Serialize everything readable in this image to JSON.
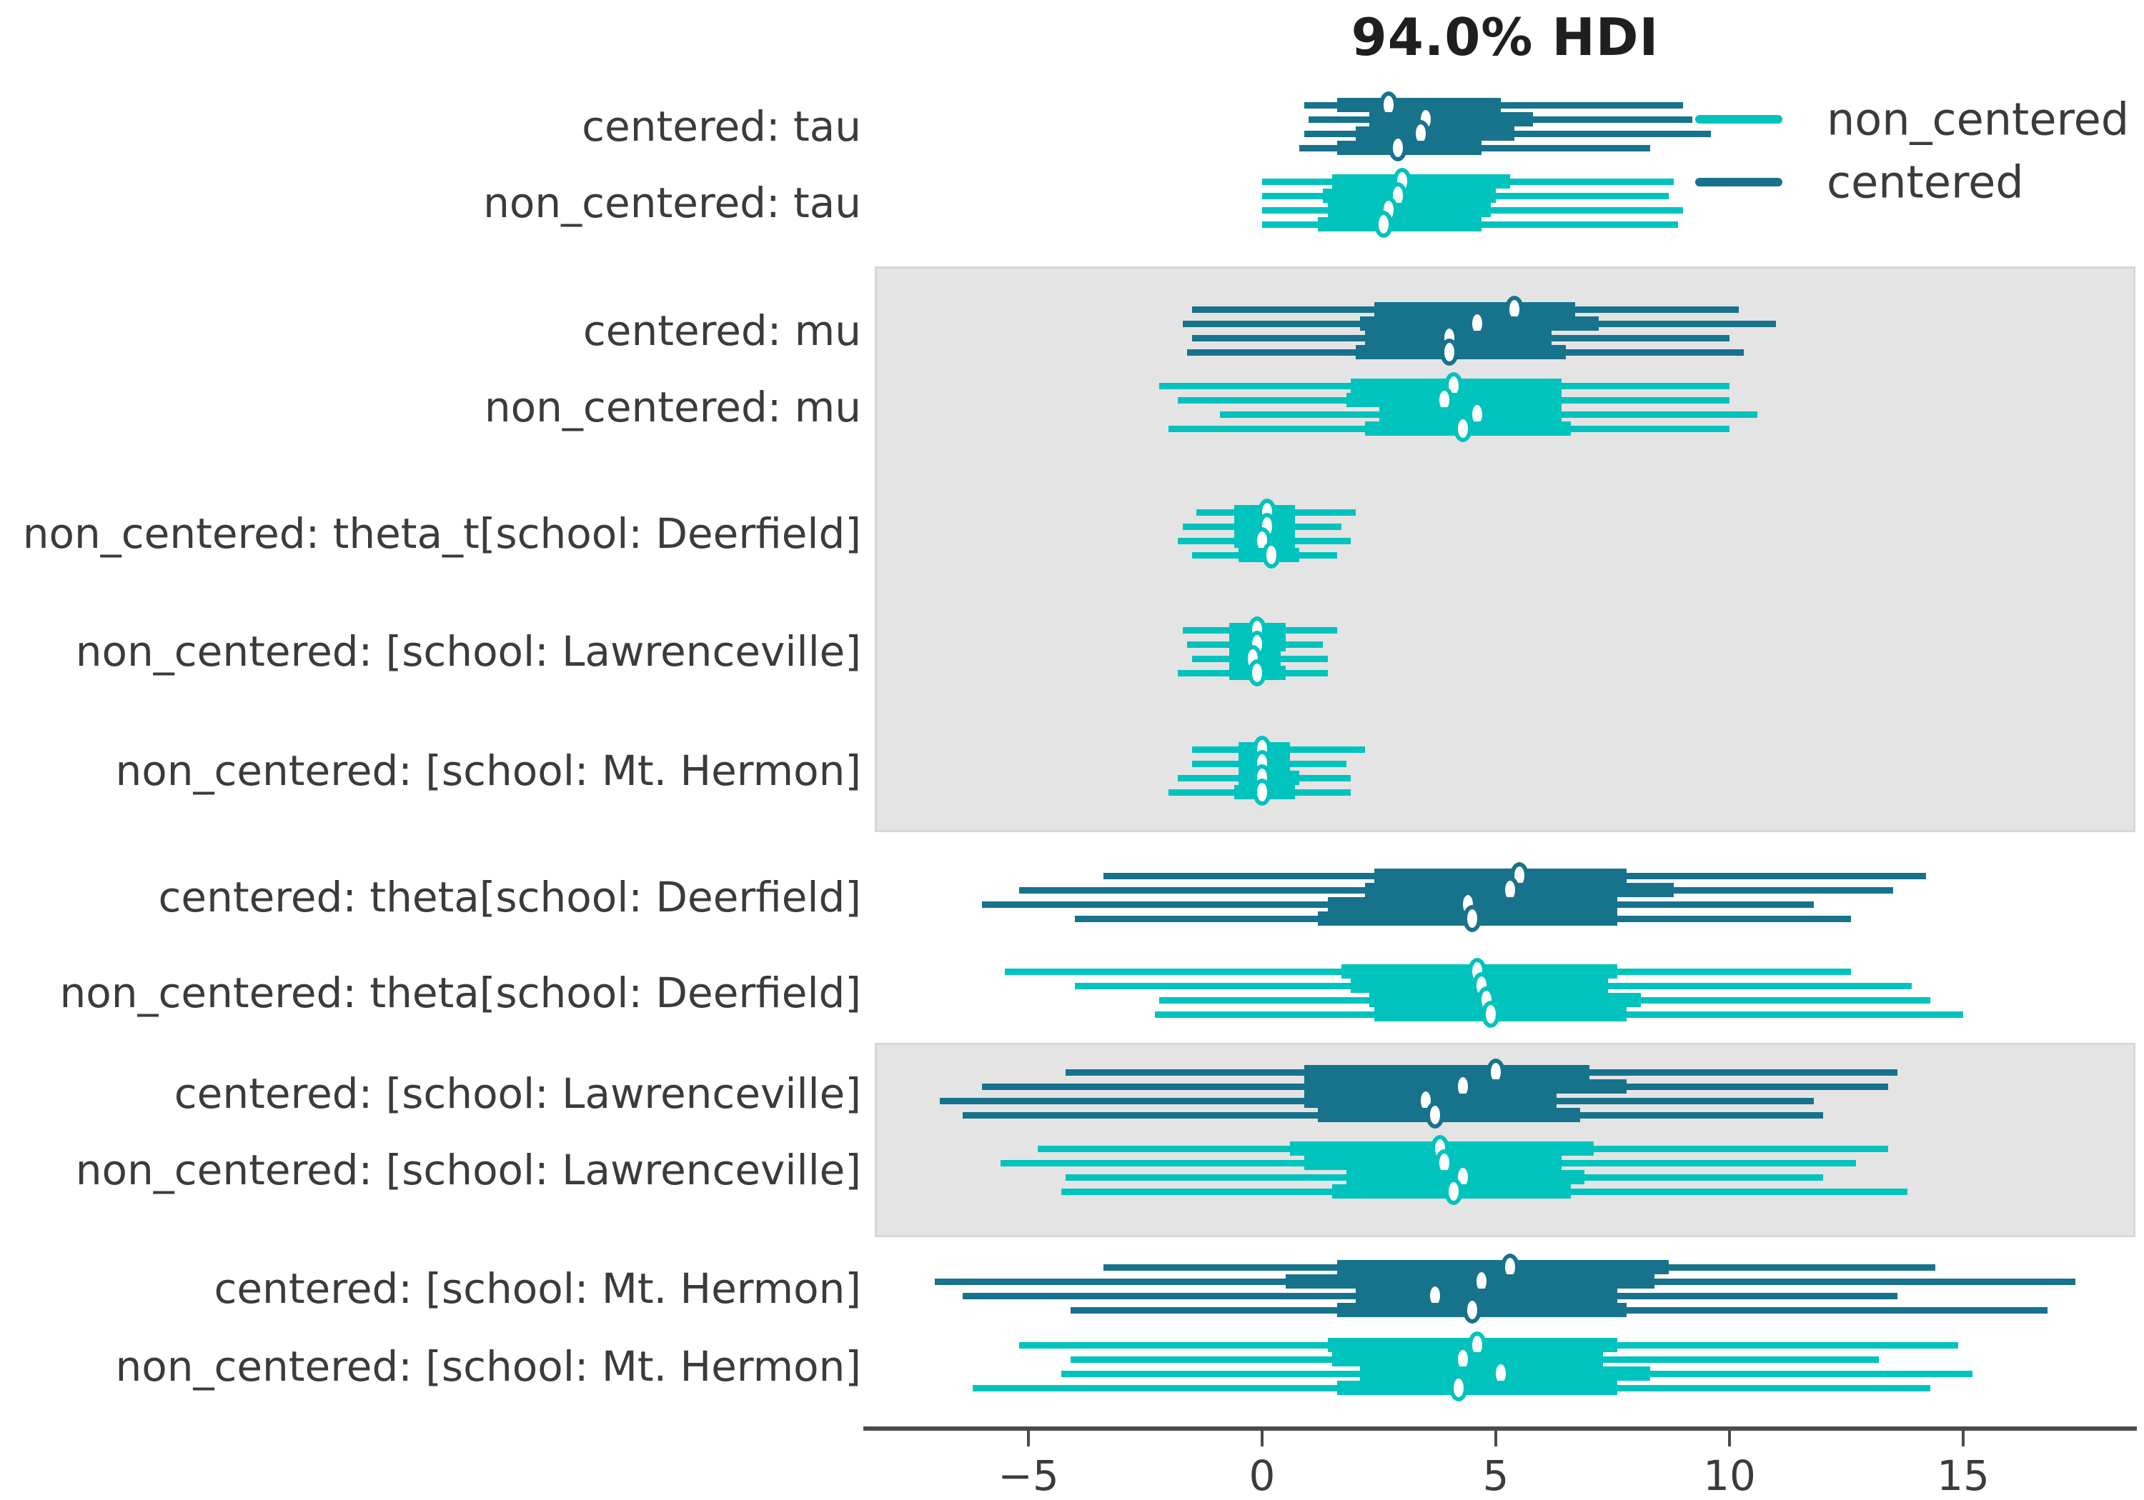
{
  "title": "94.0% HDI",
  "legend": {
    "items": [
      {
        "label": "non_centered",
        "color": "#00c3be"
      },
      {
        "label": "centered",
        "color": "#17728c"
      }
    ]
  },
  "models": {
    "non_centered": "#00c3be",
    "centered": "#17728c"
  },
  "status_colors": {
    "band_fill": "#e4e4e4",
    "band_border": "#d6d6d6",
    "axis": "#4b4b4b",
    "text": "#3b3b3b"
  },
  "chart_data": {
    "type": "forest",
    "title": "94.0% HDI",
    "hdi_probability": "94.0%",
    "interval_style": "thin = 94% HDI, thick = interquartile range, circle = median, one line per chain",
    "x_ticks": [
      -5,
      0,
      5,
      10,
      15
    ],
    "x_tick_labels": [
      "−5",
      "0",
      "5",
      "10",
      "15"
    ],
    "xlim": [
      -8.3,
      18.7
    ],
    "grid": false,
    "legend_position": "upper right outside",
    "rows": [
      {
        "label": "centered: tau",
        "model": "centered",
        "shaded": false,
        "chains": [
          {
            "hdi_lo": 0.9,
            "q1": 1.6,
            "median": 2.7,
            "q3": 5.1,
            "hdi_hi": 9.0
          },
          {
            "hdi_lo": 1.0,
            "q1": 2.3,
            "median": 3.5,
            "q3": 5.8,
            "hdi_hi": 9.2
          },
          {
            "hdi_lo": 0.9,
            "q1": 2.0,
            "median": 3.4,
            "q3": 5.4,
            "hdi_hi": 9.6
          },
          {
            "hdi_lo": 0.8,
            "q1": 1.6,
            "median": 2.9,
            "q3": 4.7,
            "hdi_hi": 8.3
          }
        ]
      },
      {
        "label": "non_centered: tau",
        "model": "non_centered",
        "shaded": false,
        "chains": [
          {
            "hdi_lo": 0.0,
            "q1": 1.5,
            "median": 3.0,
            "q3": 5.3,
            "hdi_hi": 8.8
          },
          {
            "hdi_lo": 0.0,
            "q1": 1.3,
            "median": 2.9,
            "q3": 5.0,
            "hdi_hi": 8.7
          },
          {
            "hdi_lo": 0.0,
            "q1": 1.4,
            "median": 2.7,
            "q3": 4.9,
            "hdi_hi": 9.0
          },
          {
            "hdi_lo": 0.0,
            "q1": 1.2,
            "median": 2.6,
            "q3": 4.7,
            "hdi_hi": 8.9
          }
        ]
      },
      {
        "label": "centered: mu",
        "model": "centered",
        "shaded": true,
        "chains": [
          {
            "hdi_lo": -1.5,
            "q1": 2.4,
            "median": 5.4,
            "q3": 6.7,
            "hdi_hi": 10.2
          },
          {
            "hdi_lo": -1.7,
            "q1": 2.1,
            "median": 4.6,
            "q3": 7.2,
            "hdi_hi": 11.0
          },
          {
            "hdi_lo": -1.5,
            "q1": 2.2,
            "median": 4.0,
            "q3": 6.2,
            "hdi_hi": 10.0
          },
          {
            "hdi_lo": -1.6,
            "q1": 2.0,
            "median": 4.0,
            "q3": 6.5,
            "hdi_hi": 10.3
          }
        ]
      },
      {
        "label": "non_centered: mu",
        "model": "non_centered",
        "shaded": true,
        "chains": [
          {
            "hdi_lo": -2.2,
            "q1": 1.9,
            "median": 4.1,
            "q3": 6.4,
            "hdi_hi": 10.0
          },
          {
            "hdi_lo": -1.8,
            "q1": 1.8,
            "median": 3.9,
            "q3": 6.4,
            "hdi_hi": 10.0
          },
          {
            "hdi_lo": -0.9,
            "q1": 2.5,
            "median": 4.6,
            "q3": 6.4,
            "hdi_hi": 10.6
          },
          {
            "hdi_lo": -2.0,
            "q1": 2.2,
            "median": 4.3,
            "q3": 6.6,
            "hdi_hi": 10.0
          }
        ]
      },
      {
        "label": "non_centered: theta_t[school: Deerfield]",
        "model": "non_centered",
        "shaded": true,
        "chains": [
          {
            "hdi_lo": -1.4,
            "q1": -0.6,
            "median": 0.1,
            "q3": 0.7,
            "hdi_hi": 2.0
          },
          {
            "hdi_lo": -1.7,
            "q1": -0.6,
            "median": 0.1,
            "q3": 0.7,
            "hdi_hi": 1.7
          },
          {
            "hdi_lo": -1.8,
            "q1": -0.6,
            "median": 0.0,
            "q3": 0.7,
            "hdi_hi": 1.9
          },
          {
            "hdi_lo": -1.5,
            "q1": -0.5,
            "median": 0.2,
            "q3": 0.8,
            "hdi_hi": 1.6
          }
        ]
      },
      {
        "label": "non_centered: [school: Lawrenceville]",
        "model": "non_centered",
        "shaded": true,
        "chains": [
          {
            "hdi_lo": -1.7,
            "q1": -0.7,
            "median": -0.1,
            "q3": 0.5,
            "hdi_hi": 1.6
          },
          {
            "hdi_lo": -1.6,
            "q1": -0.7,
            "median": -0.1,
            "q3": 0.5,
            "hdi_hi": 1.3
          },
          {
            "hdi_lo": -1.5,
            "q1": -0.7,
            "median": -0.2,
            "q3": 0.4,
            "hdi_hi": 1.4
          },
          {
            "hdi_lo": -1.8,
            "q1": -0.7,
            "median": -0.1,
            "q3": 0.5,
            "hdi_hi": 1.4
          }
        ]
      },
      {
        "label": "non_centered: [school: Mt. Hermon]",
        "model": "non_centered",
        "shaded": true,
        "chains": [
          {
            "hdi_lo": -1.5,
            "q1": -0.5,
            "median": 0.0,
            "q3": 0.6,
            "hdi_hi": 2.2
          },
          {
            "hdi_lo": -1.5,
            "q1": -0.5,
            "median": 0.0,
            "q3": 0.6,
            "hdi_hi": 1.8
          },
          {
            "hdi_lo": -1.8,
            "q1": -0.5,
            "median": 0.0,
            "q3": 0.8,
            "hdi_hi": 1.9
          },
          {
            "hdi_lo": -2.0,
            "q1": -0.6,
            "median": 0.0,
            "q3": 0.7,
            "hdi_hi": 1.9
          }
        ]
      },
      {
        "label": "centered: theta[school: Deerfield]",
        "model": "centered",
        "shaded": false,
        "chains": [
          {
            "hdi_lo": -3.4,
            "q1": 2.4,
            "median": 5.5,
            "q3": 7.8,
            "hdi_hi": 14.2
          },
          {
            "hdi_lo": -5.2,
            "q1": 2.2,
            "median": 5.3,
            "q3": 8.8,
            "hdi_hi": 13.5
          },
          {
            "hdi_lo": -6.0,
            "q1": 1.4,
            "median": 4.4,
            "q3": 7.6,
            "hdi_hi": 11.8
          },
          {
            "hdi_lo": -4.0,
            "q1": 1.2,
            "median": 4.5,
            "q3": 7.6,
            "hdi_hi": 12.6
          }
        ]
      },
      {
        "label": "non_centered: theta[school: Deerfield]",
        "model": "non_centered",
        "shaded": false,
        "chains": [
          {
            "hdi_lo": -5.5,
            "q1": 1.7,
            "median": 4.6,
            "q3": 7.6,
            "hdi_hi": 12.6
          },
          {
            "hdi_lo": -4.0,
            "q1": 1.9,
            "median": 4.7,
            "q3": 7.4,
            "hdi_hi": 13.9
          },
          {
            "hdi_lo": -2.2,
            "q1": 2.3,
            "median": 4.8,
            "q3": 8.1,
            "hdi_hi": 14.3
          },
          {
            "hdi_lo": -2.3,
            "q1": 2.4,
            "median": 4.9,
            "q3": 7.8,
            "hdi_hi": 15.0
          }
        ]
      },
      {
        "label": "centered: [school: Lawrenceville]",
        "model": "centered",
        "shaded": true,
        "chains": [
          {
            "hdi_lo": -4.2,
            "q1": 0.9,
            "median": 5.0,
            "q3": 7.0,
            "hdi_hi": 13.6
          },
          {
            "hdi_lo": -6.0,
            "q1": 0.9,
            "median": 4.3,
            "q3": 7.8,
            "hdi_hi": 13.4
          },
          {
            "hdi_lo": -6.9,
            "q1": 0.9,
            "median": 3.5,
            "q3": 6.3,
            "hdi_hi": 11.8
          },
          {
            "hdi_lo": -6.4,
            "q1": 1.2,
            "median": 3.7,
            "q3": 6.8,
            "hdi_hi": 12.0
          }
        ]
      },
      {
        "label": "non_centered: [school: Lawrenceville]",
        "model": "non_centered",
        "shaded": true,
        "chains": [
          {
            "hdi_lo": -4.8,
            "q1": 0.6,
            "median": 3.8,
            "q3": 7.1,
            "hdi_hi": 13.4
          },
          {
            "hdi_lo": -5.6,
            "q1": 0.9,
            "median": 3.9,
            "q3": 6.4,
            "hdi_hi": 12.7
          },
          {
            "hdi_lo": -4.2,
            "q1": 1.8,
            "median": 4.3,
            "q3": 6.9,
            "hdi_hi": 12.0
          },
          {
            "hdi_lo": -4.3,
            "q1": 1.5,
            "median": 4.1,
            "q3": 6.6,
            "hdi_hi": 13.8
          }
        ]
      },
      {
        "label": "centered: [school: Mt. Hermon]",
        "model": "centered",
        "shaded": false,
        "chains": [
          {
            "hdi_lo": -3.4,
            "q1": 1.6,
            "median": 5.3,
            "q3": 8.7,
            "hdi_hi": 14.4
          },
          {
            "hdi_lo": -7.0,
            "q1": 0.5,
            "median": 4.7,
            "q3": 8.4,
            "hdi_hi": 17.4
          },
          {
            "hdi_lo": -6.4,
            "q1": 2.0,
            "median": 3.7,
            "q3": 7.6,
            "hdi_hi": 13.6
          },
          {
            "hdi_lo": -4.1,
            "q1": 1.6,
            "median": 4.5,
            "q3": 7.8,
            "hdi_hi": 16.8
          }
        ]
      },
      {
        "label": "non_centered: [school: Mt. Hermon]",
        "model": "non_centered",
        "shaded": false,
        "chains": [
          {
            "hdi_lo": -5.2,
            "q1": 1.4,
            "median": 4.6,
            "q3": 7.6,
            "hdi_hi": 14.9
          },
          {
            "hdi_lo": -4.1,
            "q1": 1.5,
            "median": 4.3,
            "q3": 7.3,
            "hdi_hi": 13.2
          },
          {
            "hdi_lo": -4.3,
            "q1": 2.1,
            "median": 5.1,
            "q3": 8.3,
            "hdi_hi": 15.2
          },
          {
            "hdi_lo": -6.2,
            "q1": 1.6,
            "median": 4.2,
            "q3": 7.6,
            "hdi_hi": 14.3
          }
        ]
      }
    ]
  }
}
